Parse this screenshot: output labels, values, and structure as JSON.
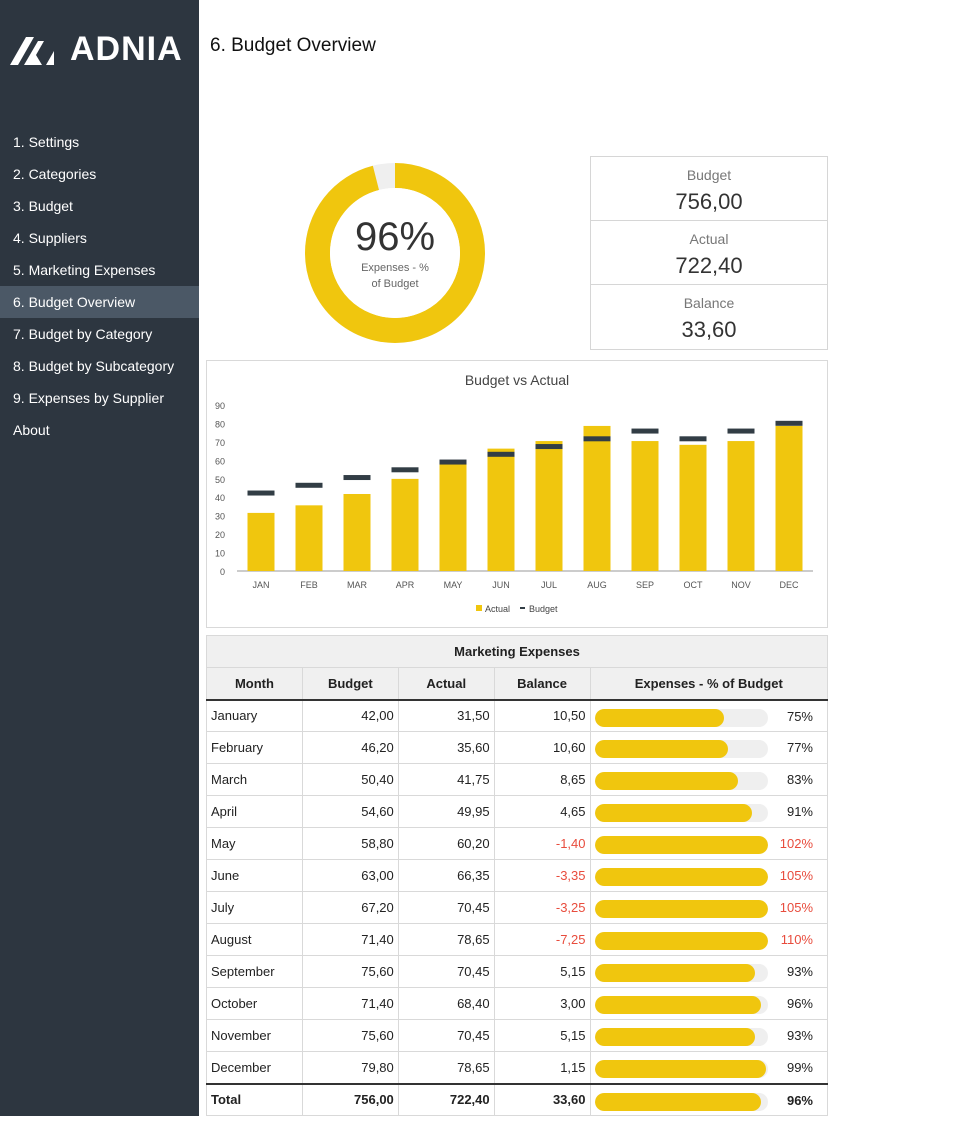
{
  "app": {
    "logo_text": "ADNIA",
    "title": "6. Budget Overview"
  },
  "sidebar": {
    "items": [
      {
        "label": "1. Settings"
      },
      {
        "label": "2. Categories"
      },
      {
        "label": "3. Budget"
      },
      {
        "label": "4. Suppliers"
      },
      {
        "label": "5. Marketing Expenses"
      },
      {
        "label": "6. Budget Overview",
        "active": true
      },
      {
        "label": "7. Budget by Category"
      },
      {
        "label": "8. Budget by Subcategory"
      },
      {
        "label": "9. Expenses by Supplier"
      },
      {
        "label": "About"
      }
    ]
  },
  "donut": {
    "value_text": "96%",
    "value": 0.96,
    "caption_line1": "Expenses - %",
    "caption_line2": "of Budget"
  },
  "kpi": [
    {
      "label": "Budget",
      "value": "756,00"
    },
    {
      "label": "Actual",
      "value": "722,40"
    },
    {
      "label": "Balance",
      "value": "33,60"
    }
  ],
  "colors": {
    "accent": "#f0c60e",
    "dark": "#2d3640",
    "negative": "#e84c3d"
  },
  "chart_data": {
    "type": "bar",
    "title": "Budget vs Actual",
    "categories": [
      "JAN",
      "FEB",
      "MAR",
      "APR",
      "MAY",
      "JUN",
      "JUL",
      "AUG",
      "SEP",
      "OCT",
      "NOV",
      "DEC"
    ],
    "series": [
      {
        "name": "Actual",
        "type": "bar",
        "values": [
          31.5,
          35.6,
          41.75,
          49.95,
          60.2,
          66.35,
          70.45,
          78.65,
          70.45,
          68.4,
          70.45,
          78.65
        ]
      },
      {
        "name": "Budget",
        "type": "marker",
        "values": [
          42,
          46.2,
          50.4,
          54.6,
          58.8,
          63,
          67.2,
          71.4,
          75.6,
          71.4,
          75.6,
          79.8
        ]
      }
    ],
    "yticks": [
      0,
      10,
      20,
      30,
      40,
      50,
      60,
      70,
      80,
      90
    ],
    "ylim": [
      0,
      90
    ],
    "legend": "bottom",
    "grid": false
  },
  "table": {
    "title": "Marketing Expenses",
    "headers": [
      "Month",
      "Budget",
      "Actual",
      "Balance",
      "Expenses - % of Budget"
    ],
    "rows": [
      [
        "January",
        "42,00",
        "31,50",
        "10,50",
        "75%",
        0.75
      ],
      [
        "February",
        "46,20",
        "35,60",
        "10,60",
        "77%",
        0.77
      ],
      [
        "March",
        "50,40",
        "41,75",
        "8,65",
        "83%",
        0.83
      ],
      [
        "April",
        "54,60",
        "49,95",
        "4,65",
        "91%",
        0.91
      ],
      [
        "May",
        "58,80",
        "60,20",
        "-1,40",
        "102%",
        1.02
      ],
      [
        "June",
        "63,00",
        "66,35",
        "-3,35",
        "105%",
        1.05
      ],
      [
        "July",
        "67,20",
        "70,45",
        "-3,25",
        "105%",
        1.05
      ],
      [
        "August",
        "71,40",
        "78,65",
        "-7,25",
        "110%",
        1.1
      ],
      [
        "September",
        "75,60",
        "70,45",
        "5,15",
        "93%",
        0.93
      ],
      [
        "October",
        "71,40",
        "68,40",
        "3,00",
        "96%",
        0.96
      ],
      [
        "November",
        "75,60",
        "70,45",
        "5,15",
        "93%",
        0.93
      ],
      [
        "December",
        "79,80",
        "78,65",
        "1,15",
        "99%",
        0.99
      ]
    ],
    "total": [
      "Total",
      "756,00",
      "722,40",
      "33,60",
      "96%",
      0.96
    ]
  }
}
